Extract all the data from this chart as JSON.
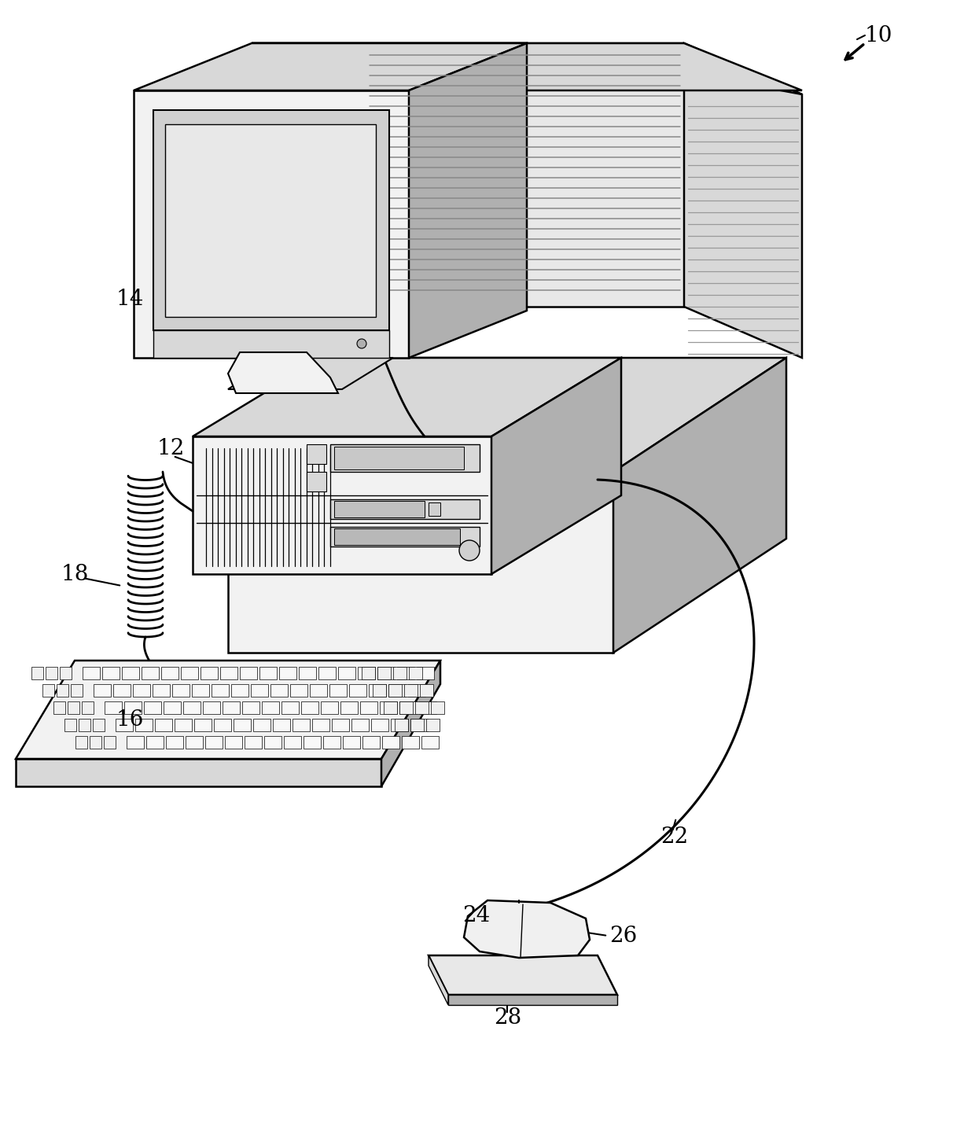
{
  "background_color": "#ffffff",
  "line_color": "#000000",
  "lw": 1.8,
  "label_fontsize": 20,
  "figsize": [
    12.4,
    14.51
  ],
  "dpi": 100,
  "gray_light": "#f2f2f2",
  "gray_mid": "#d8d8d8",
  "gray_dark": "#b0b0b0",
  "gray_screen": "#e0e0e0",
  "gray_stripe": "#e8e8e8"
}
